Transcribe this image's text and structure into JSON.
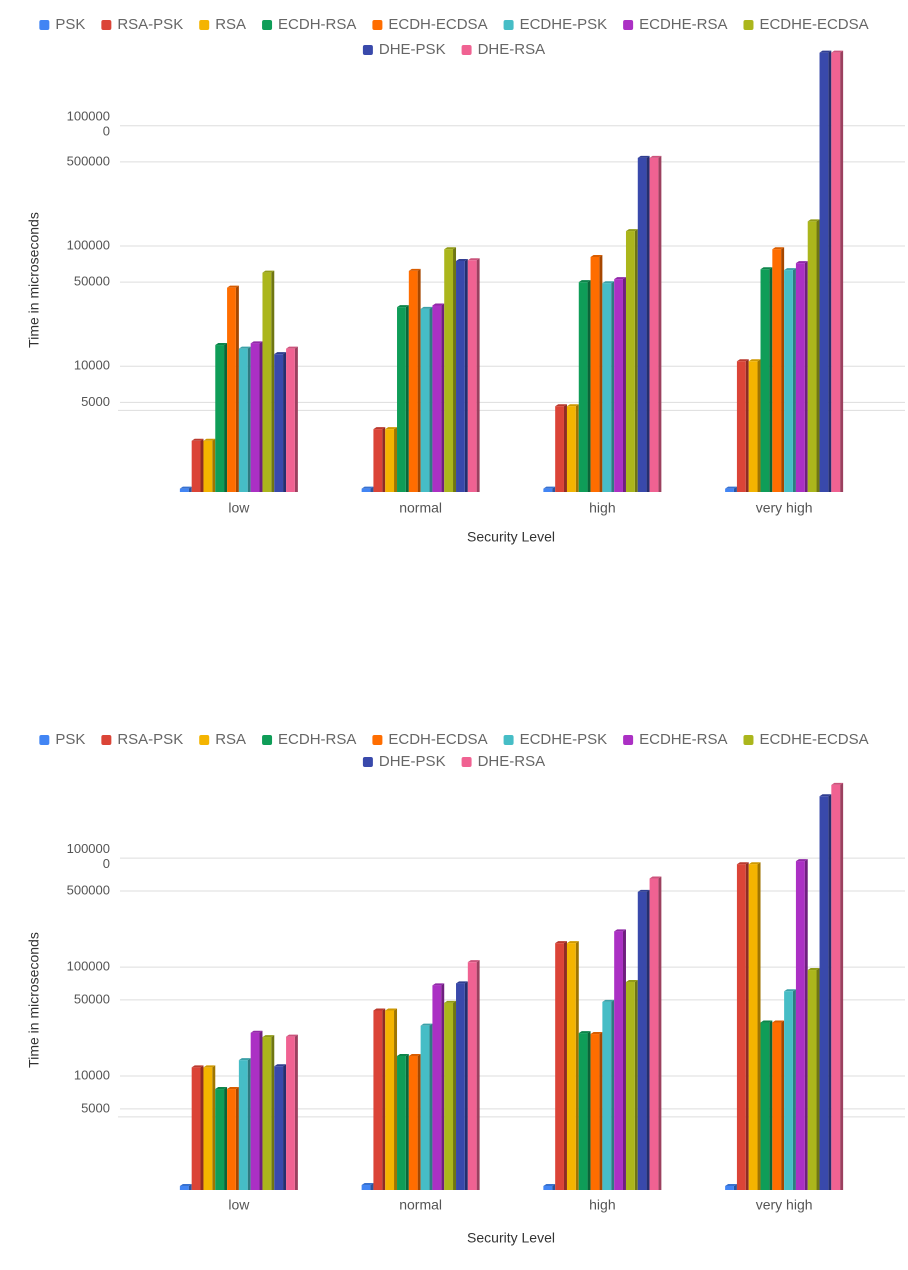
{
  "chart_data": [
    {
      "type": "bar",
      "x_label": "Security Level",
      "y_label": "Time in microseconds",
      "log_scale": true,
      "grid": true,
      "legend": "top",
      "categories": [
        "low",
        "normal",
        "high",
        "very high"
      ],
      "ylim": [
        900,
        4100000
      ],
      "yticks": [
        5000,
        10000,
        50000,
        100000,
        500000,
        1000000
      ],
      "series": [
        {
          "name": "PSK",
          "color": "#4285f4",
          "values": [
            960,
            960,
            960,
            960
          ]
        },
        {
          "name": "RSA-PSK",
          "color": "#db4437",
          "values": [
            2400,
            3000,
            4650,
            11000
          ]
        },
        {
          "name": "RSA",
          "color": "#f4b400",
          "values": [
            2400,
            3000,
            4650,
            11000
          ]
        },
        {
          "name": "ECDH-RSA",
          "color": "#0f9d58",
          "values": [
            15000,
            31000,
            50000,
            64000
          ]
        },
        {
          "name": "ECDH-ECDSA",
          "color": "#ff6d00",
          "values": [
            45000,
            62000,
            81000,
            94000
          ]
        },
        {
          "name": "ECDHE-PSK",
          "color": "#46bdc6",
          "values": [
            14000,
            30000,
            49000,
            63000
          ]
        },
        {
          "name": "ECDHE-RSA",
          "color": "#ab30c4",
          "values": [
            15500,
            32000,
            53000,
            72000
          ]
        },
        {
          "name": "ECDHE-ECDSA",
          "color": "#abb61c",
          "values": [
            60000,
            94000,
            133000,
            160000
          ]
        },
        {
          "name": "DHE-PSK",
          "color": "#3949ab",
          "values": [
            12600,
            75000,
            540000,
            4050000
          ]
        },
        {
          "name": "DHE-RSA",
          "color": "#f06292",
          "values": [
            14000,
            76000,
            540000,
            4050000
          ]
        }
      ]
    },
    {
      "type": "bar",
      "x_label": "Security Level",
      "y_label": "Time in microseconds",
      "log_scale": true,
      "grid": true,
      "legend": "top",
      "categories": [
        "low",
        "normal",
        "high",
        "very high"
      ],
      "ylim": [
        900,
        5000000
      ],
      "yticks": [
        5000,
        10000,
        50000,
        100000,
        500000,
        1000000
      ],
      "series": [
        {
          "name": "PSK",
          "color": "#4285f4",
          "values": [
            980,
            1000,
            980,
            980
          ]
        },
        {
          "name": "RSA-PSK",
          "color": "#db4437",
          "values": [
            12000,
            40000,
            166000,
            880000
          ]
        },
        {
          "name": "RSA",
          "color": "#f4b400",
          "values": [
            12000,
            40000,
            166000,
            880000
          ]
        },
        {
          "name": "ECDH-RSA",
          "color": "#0f9d58",
          "values": [
            7600,
            15300,
            24800,
            31000
          ]
        },
        {
          "name": "ECDH-ECDSA",
          "color": "#ff6d00",
          "values": [
            7600,
            15300,
            24300,
            31000
          ]
        },
        {
          "name": "ECDHE-PSK",
          "color": "#46bdc6",
          "values": [
            14000,
            29000,
            48000,
            60000
          ]
        },
        {
          "name": "ECDHE-RSA",
          "color": "#ab30c4",
          "values": [
            25000,
            68000,
            213000,
            940000
          ]
        },
        {
          "name": "ECDHE-ECDSA",
          "color": "#abb61c",
          "values": [
            22800,
            47000,
            73000,
            94000
          ]
        },
        {
          "name": "DHE-PSK",
          "color": "#3949ab",
          "values": [
            12300,
            71000,
            490000,
            3700000
          ]
        },
        {
          "name": "DHE-RSA",
          "color": "#f06292",
          "values": [
            23000,
            111000,
            650000,
            4700000
          ]
        }
      ]
    }
  ]
}
